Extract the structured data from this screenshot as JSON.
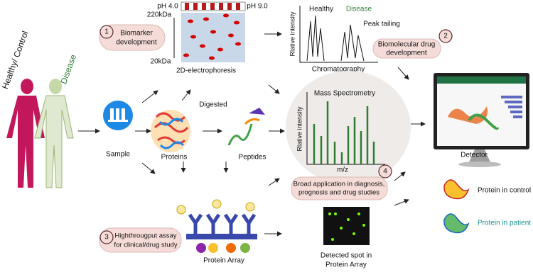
{
  "body_panel": {
    "healthy": "Healthy/ Control",
    "disease": "Disease"
  },
  "workflow": {
    "sample": "Sample",
    "proteins": "Proteins",
    "digested": "Digested",
    "peptides": "Peptides"
  },
  "step1": {
    "number": "1",
    "label": [
      "Biomarker",
      "development"
    ]
  },
  "electrophoresis": {
    "ph_low": "pH 4.0",
    "ph_high": "pH 9.0",
    "mass_high": "220kDa",
    "mass_low": "20kDa",
    "caption": "2D-electrophoresis"
  },
  "chromatography": {
    "healthy": "Healthy",
    "disease": "Disease",
    "peak_tailing": "Peak tailing",
    "y_label": "Rlative intensity",
    "caption": "Chromatography"
  },
  "step2": {
    "number": "2",
    "label": [
      "Biomolecular drug",
      "development"
    ]
  },
  "mass_spec": {
    "title": "Mass Spectrometry",
    "y_label": "Rlative intensity",
    "x_label": "m/z"
  },
  "step4": {
    "number": "4",
    "label": [
      "Broad application in diagnosis,",
      "prognosis and drug studies"
    ]
  },
  "detector": {
    "caption": "Detector"
  },
  "legend": {
    "control": "Protein in control",
    "patient": "Protein in patient"
  },
  "step3": {
    "number": "3",
    "label": [
      "Highthrougput assay",
      "for clinical/drug study"
    ]
  },
  "protein_array": {
    "caption": "Protein Array"
  },
  "detected": {
    "caption": [
      "Detected spot in",
      "Protein Array"
    ]
  }
}
